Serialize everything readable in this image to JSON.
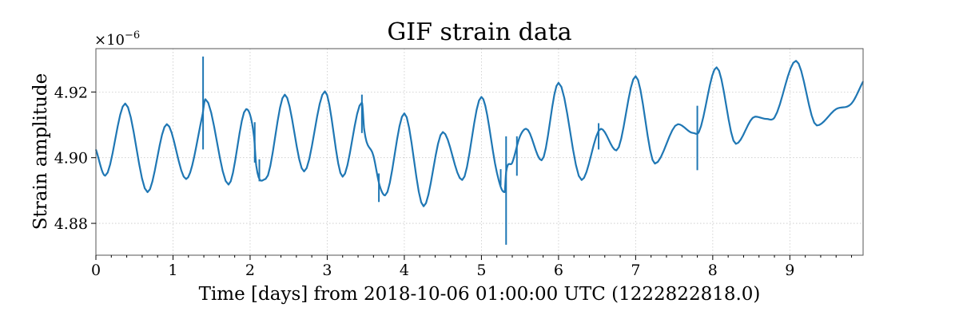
{
  "chart_data": {
    "type": "line",
    "title": "GIF strain data",
    "xlabel": "Time [days] from 2018-10-06 01:00:00 UTC (1222822818.0)",
    "ylabel": "Strain amplitude",
    "offset_base": "×10",
    "offset_exponent": "−6",
    "xlim": [
      0,
      9.95
    ],
    "ylim": [
      4.8703,
      4.9332
    ],
    "x_ticks": [
      0,
      1,
      2,
      3,
      4,
      5,
      6,
      7,
      8,
      9
    ],
    "x_tick_labels": [
      "0",
      "1",
      "2",
      "3",
      "4",
      "5",
      "6",
      "7",
      "8",
      "9"
    ],
    "x_minor_step": 0.2,
    "y_ticks": [
      4.88,
      4.9,
      4.92
    ],
    "y_tick_labels": [
      "4.88",
      "4.90",
      "4.92"
    ],
    "grid": true,
    "color": "#1f77b4",
    "series": [
      {
        "x": [
          0,
          0.12,
          0.38,
          0.67,
          0.92,
          1.17,
          1.38,
          1.42,
          1.72,
          1.95,
          2.05,
          2.08,
          2.2,
          2.45,
          2.7,
          2.97,
          3.2,
          3.45,
          3.48,
          3.6,
          3.68,
          3.75,
          4.0,
          4.25,
          4.5,
          4.75,
          5.0,
          5.2,
          5.26,
          5.3,
          5.32,
          5.4,
          5.5,
          5.58,
          5.78,
          6.0,
          6.3,
          6.55,
          6.75,
          7.0,
          7.25,
          7.55,
          7.75,
          7.82,
          8.05,
          8.3,
          8.55,
          8.7,
          8.8,
          9.08,
          9.35,
          9.6,
          9.8,
          9.95
        ],
        "y": [
          4.9025,
          4.8945,
          4.9165,
          4.8895,
          4.9102,
          4.8935,
          4.9128,
          4.9178,
          4.8918,
          4.9148,
          4.9065,
          4.8975,
          4.8935,
          4.9192,
          4.8958,
          4.9202,
          4.8942,
          4.9168,
          4.9085,
          4.9005,
          4.8915,
          4.8885,
          4.9135,
          4.8852,
          4.9078,
          4.8932,
          4.9185,
          4.8955,
          4.8905,
          4.8895,
          4.8955,
          4.8985,
          4.9065,
          4.9088,
          4.8992,
          4.9228,
          4.8932,
          4.9088,
          4.9022,
          4.9248,
          4.8982,
          4.9102,
          4.9075,
          4.9078,
          4.9275,
          4.9042,
          4.9125,
          4.9118,
          4.9122,
          4.9295,
          4.9098,
          4.9148,
          4.9165,
          4.9232
        ]
      }
    ],
    "glitches": [
      {
        "x": 1.39,
        "y1": 4.9025,
        "y2": 4.9308
      },
      {
        "x": 2.06,
        "y1": 4.8985,
        "y2": 4.9108
      },
      {
        "x": 2.12,
        "y1": 4.8928,
        "y2": 4.8995
      },
      {
        "x": 3.45,
        "y1": 4.9075,
        "y2": 4.9192
      },
      {
        "x": 3.67,
        "y1": 4.8865,
        "y2": 4.8952
      },
      {
        "x": 5.25,
        "y1": 4.8915,
        "y2": 4.8965
      },
      {
        "x": 5.32,
        "y1": 4.8735,
        "y2": 4.9065
      },
      {
        "x": 5.46,
        "y1": 4.8945,
        "y2": 4.9065
      },
      {
        "x": 6.52,
        "y1": 4.9025,
        "y2": 4.9105
      },
      {
        "x": 7.8,
        "y1": 4.8962,
        "y2": 4.9158
      }
    ]
  }
}
